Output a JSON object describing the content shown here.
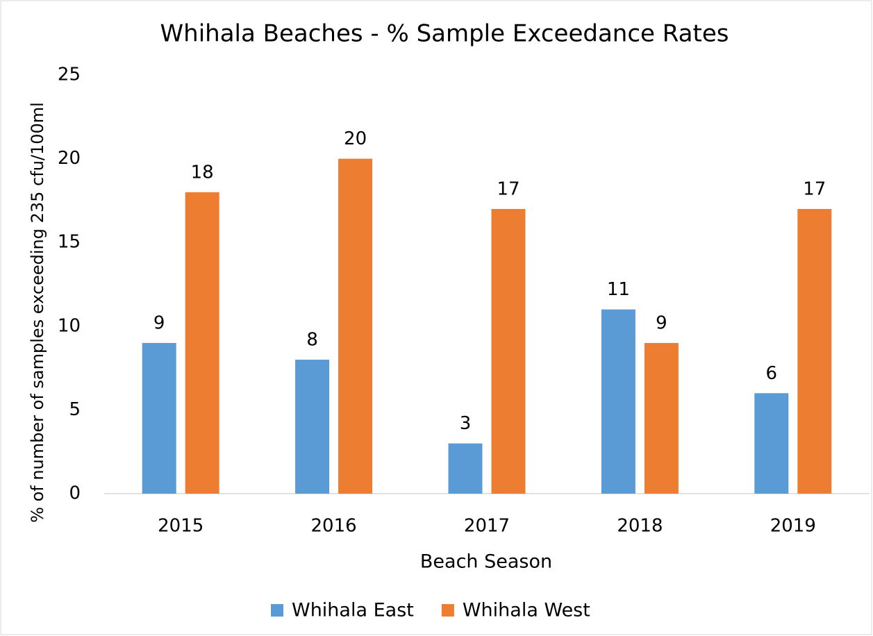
{
  "chart_data": {
    "type": "bar",
    "title": "Whihala Beaches - % Sample Exceedance Rates",
    "x_label": "Beach Season",
    "y_label": "% of number of samples exceeding 235 cfu/100ml",
    "categories": [
      "2015",
      "2016",
      "2017",
      "2018",
      "2019"
    ],
    "series": [
      {
        "name": "Whihala East",
        "color": "#5b9bd5",
        "values": [
          9,
          8,
          3,
          11,
          6
        ]
      },
      {
        "name": "Whihala West",
        "color": "#ed7d31",
        "values": [
          18,
          20,
          17,
          9,
          17
        ]
      }
    ],
    "ylim": [
      0,
      25
    ],
    "yticks": [
      0,
      5,
      10,
      15,
      20,
      25
    ],
    "grid": false,
    "legend": "bottom"
  }
}
